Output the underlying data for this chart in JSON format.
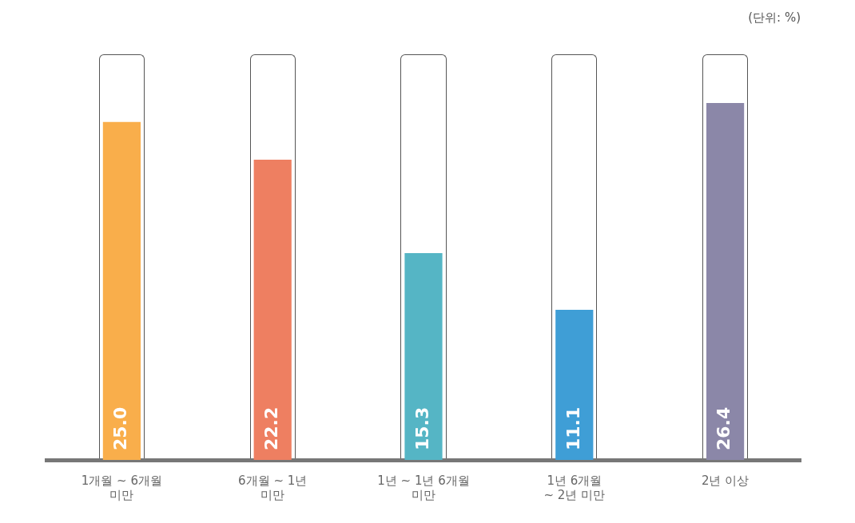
{
  "chart_data": {
    "type": "bar",
    "categories": [
      "1개월 ~ 6개월\n미만",
      "6개월 ~ 1년\n미만",
      "1년 ~ 1년 6개월\n미만",
      "1년 6개월\n~ 2년 미만",
      "2년 이상"
    ],
    "values": [
      25.0,
      22.2,
      15.3,
      11.1,
      26.4
    ],
    "colors": [
      "#f9ae4b",
      "#ee7f61",
      "#55b5c5",
      "#3f9ed6",
      "#8b87a8"
    ],
    "value_labels": [
      "25.0",
      "22.2",
      "15.3",
      "11.1",
      "26.4"
    ],
    "annotations": [
      "(단위: %)"
    ],
    "grid": false,
    "legend": false
  }
}
